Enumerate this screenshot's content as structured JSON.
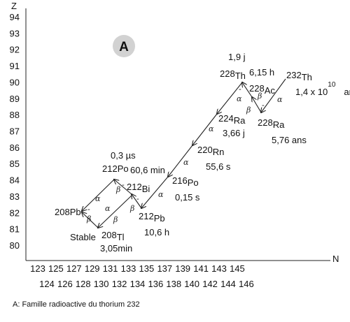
{
  "axes": {
    "y_label": "Z",
    "x_label": "N",
    "y_ticks": [
      "80",
      "81",
      "82",
      "83",
      "84",
      "85",
      "86",
      "87",
      "88",
      "89",
      "90",
      "91",
      "92",
      "93",
      "94"
    ],
    "x_ticks_top": [
      "123",
      "125",
      "127",
      "129",
      "131",
      "133",
      "135",
      "137",
      "139",
      "141",
      "143",
      "145"
    ],
    "x_ticks_bottom": [
      "124",
      "126",
      "128",
      "130",
      "132",
      "134",
      "136",
      "138",
      "140",
      "142",
      "144",
      "146"
    ]
  },
  "badge": "A",
  "nuclides": [
    {
      "id": "th232",
      "mass": "232",
      "sym": "Th",
      "half": "1,4 x 10",
      "exp": "10",
      "unit": "ans"
    },
    {
      "id": "ra228",
      "mass": "228",
      "sym": "Ra",
      "half": "5,76 ans"
    },
    {
      "id": "ac228",
      "mass": "228",
      "sym": "Ac",
      "half": "6,15 h"
    },
    {
      "id": "th228",
      "mass": "228",
      "sym": "Th",
      "half": "1,9 j"
    },
    {
      "id": "ra224",
      "mass": "224",
      "sym": "Ra",
      "half": "3,66 j"
    },
    {
      "id": "rn220",
      "mass": "220",
      "sym": "Rn",
      "half": "55,6 s"
    },
    {
      "id": "po216",
      "mass": "216",
      "sym": "Po",
      "half": "0,15 s"
    },
    {
      "id": "pb212",
      "mass": "212",
      "sym": "Pb",
      "half": "10,6 h"
    },
    {
      "id": "bi212",
      "mass": "212",
      "sym": "Bi",
      "half": "60,6 min"
    },
    {
      "id": "po212",
      "mass": "212",
      "sym": "Po",
      "half": "0,3 µs"
    },
    {
      "id": "tl208",
      "mass": "208",
      "sym": "Tl",
      "half": "3,05min"
    },
    {
      "id": "pb208",
      "mass": "208",
      "sym": "Pb",
      "half": "Stable"
    }
  ],
  "decay_labels": {
    "alpha": "α",
    "beta": "β",
    "beta_minus": "-"
  },
  "caption": "A: Famille radioactive du thorium 232"
}
